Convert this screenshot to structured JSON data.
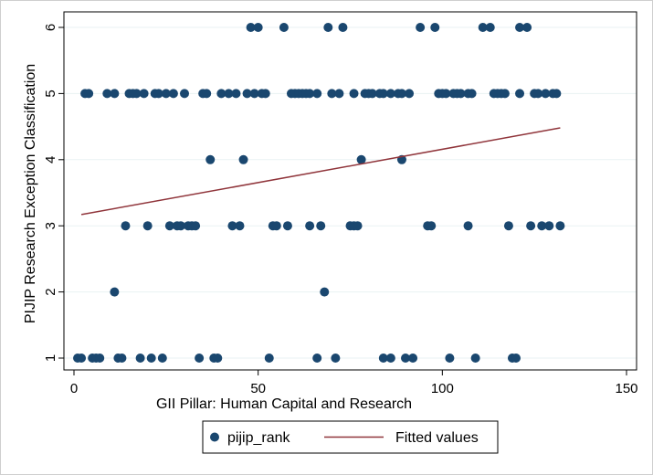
{
  "chart_data": {
    "type": "scatter",
    "title": "",
    "xlabel": "GII Pillar: Human Capital and Research",
    "ylabel": "PIJIP Research Exception Classification",
    "xlim": [
      0,
      150
    ],
    "ylim": [
      1,
      6
    ],
    "x_ticks": [
      0,
      50,
      100,
      150
    ],
    "y_ticks": [
      1,
      2,
      3,
      4,
      5,
      6
    ],
    "grid": "horizontal",
    "legend_position": "bottom",
    "colors": {
      "points": "#1a476f",
      "fit_line": "#90353b",
      "frame": "#000000"
    },
    "series": [
      {
        "name": "pijip_rank",
        "kind": "scatter",
        "x": [
          57,
          69,
          73,
          94,
          98,
          111,
          113,
          121,
          123,
          48,
          50,
          3,
          4,
          9,
          11,
          15,
          16,
          17,
          19,
          22,
          23,
          25,
          27,
          30,
          35,
          36,
          40,
          42,
          44,
          47,
          49,
          51,
          52,
          59,
          60,
          61,
          62,
          63,
          64,
          66,
          70,
          72,
          76,
          79,
          80,
          81,
          83,
          84,
          86,
          88,
          89,
          91,
          99,
          100,
          101,
          103,
          104,
          105,
          107,
          108,
          114,
          115,
          116,
          117,
          121,
          125,
          126,
          128,
          130,
          131,
          37,
          46,
          78,
          89,
          14,
          20,
          26,
          28,
          29,
          31,
          32,
          33,
          43,
          45,
          54,
          55,
          58,
          64,
          67,
          75,
          76,
          77,
          96,
          97,
          107,
          118,
          124,
          127,
          129,
          132,
          11,
          68,
          1,
          2,
          5,
          6,
          7,
          12,
          13,
          18,
          21,
          24,
          34,
          38,
          39,
          53,
          66,
          71,
          84,
          86,
          90,
          92,
          102,
          109,
          119,
          120
        ],
        "y": [
          6,
          6,
          6,
          6,
          6,
          6,
          6,
          6,
          6,
          6,
          6,
          5,
          5,
          5,
          5,
          5,
          5,
          5,
          5,
          5,
          5,
          5,
          5,
          5,
          5,
          5,
          5,
          5,
          5,
          5,
          5,
          5,
          5,
          5,
          5,
          5,
          5,
          5,
          5,
          5,
          5,
          5,
          5,
          5,
          5,
          5,
          5,
          5,
          5,
          5,
          5,
          5,
          5,
          5,
          5,
          5,
          5,
          5,
          5,
          5,
          5,
          5,
          5,
          5,
          5,
          5,
          5,
          5,
          5,
          5,
          4,
          4,
          4,
          4,
          3,
          3,
          3,
          3,
          3,
          3,
          3,
          3,
          3,
          3,
          3,
          3,
          3,
          3,
          3,
          3,
          3,
          3,
          3,
          3,
          3,
          3,
          3,
          3,
          3,
          3,
          2,
          2,
          1,
          1,
          1,
          1,
          1,
          1,
          1,
          1,
          1,
          1,
          1,
          1,
          1,
          1,
          1,
          1,
          1,
          1,
          1,
          1,
          1,
          1,
          1,
          1
        ]
      },
      {
        "name": "Fitted values",
        "kind": "line",
        "x": [
          2,
          132
        ],
        "y": [
          3.17,
          4.48
        ]
      }
    ]
  }
}
